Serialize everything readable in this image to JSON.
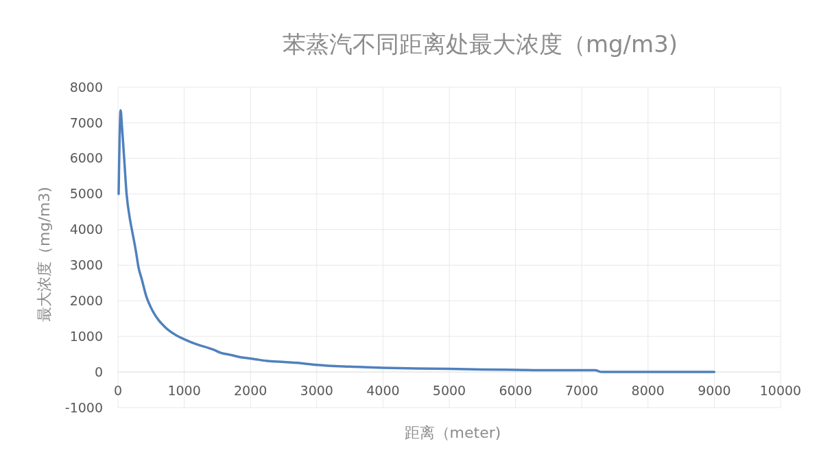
{
  "chart_data": {
    "type": "line",
    "title": "苯蒸汽不同距离处最大浓度（mg/m3)",
    "xlabel": "距离（meter)",
    "ylabel": "最大浓度（mg/m3)",
    "xlim": [
      0,
      10000
    ],
    "xticks": [
      0,
      1000,
      2000,
      3000,
      4000,
      5000,
      6000,
      7000,
      8000,
      9000,
      10000
    ],
    "ylim": [
      -1000,
      8000
    ],
    "yticks": [
      -1000,
      0,
      1000,
      2000,
      3000,
      4000,
      5000,
      6000,
      7000,
      8000
    ],
    "grid": true,
    "series": [
      {
        "color": "#4f81bd",
        "x": [
          10,
          40,
          60,
          90,
          130,
          180,
          220,
          270,
          310,
          360,
          430,
          500,
          560,
          620,
          700,
          780,
          880,
          1000,
          1100,
          1200,
          1374,
          1450,
          1550,
          1700,
          1900,
          2000,
          2250,
          2500,
          2800,
          3000,
          3500,
          4000,
          4500,
          5000,
          5500,
          6000,
          6500,
          7000,
          7200,
          7300,
          7400,
          8000,
          9000
        ],
        "values": [
          5000,
          7350,
          6900,
          6100,
          5000,
          4300,
          3900,
          3400,
          2940,
          2600,
          2110,
          1800,
          1600,
          1440,
          1280,
          1150,
          1030,
          920,
          840,
          770,
          670,
          620,
          540,
          480,
          400,
          380,
          310,
          280,
          240,
          200,
          150,
          120,
          100,
          90,
          70,
          60,
          50,
          50,
          50,
          0,
          0,
          0,
          0
        ]
      }
    ]
  }
}
